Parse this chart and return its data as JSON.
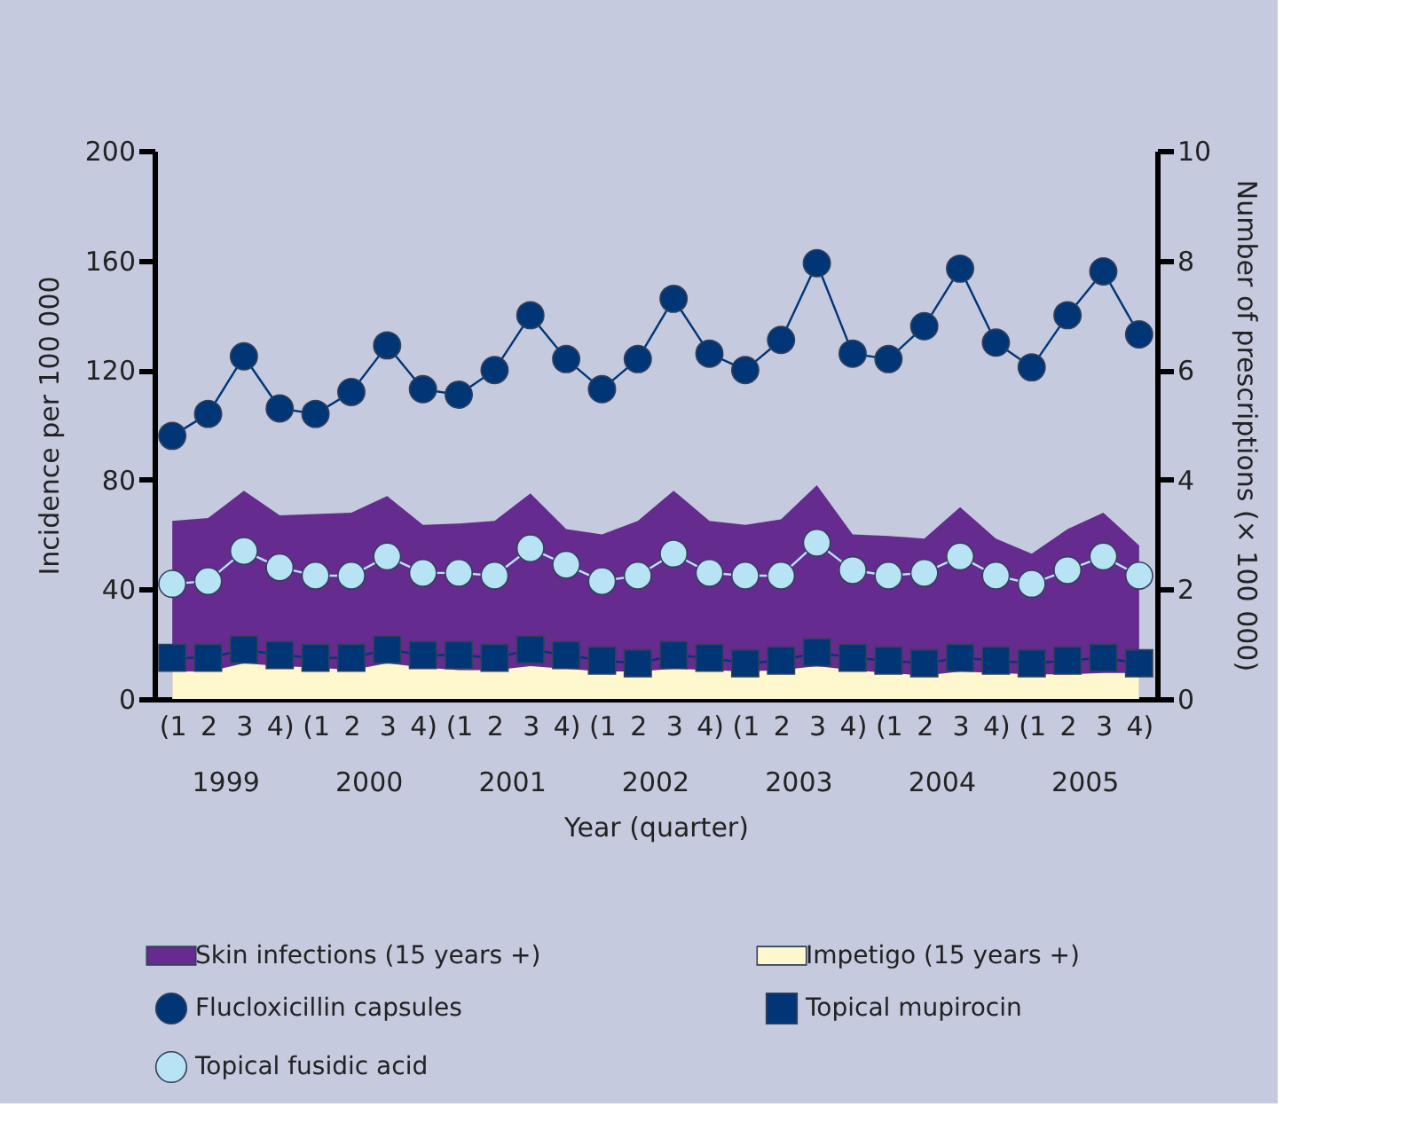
{
  "chart_data": {
    "type": "line",
    "xlabel": "Year (quarter)",
    "ylabel": "Incidence per 100 000",
    "y2label": "Number of prescriptions (× 100 000)",
    "categories": [
      "(1",
      "2",
      "3",
      "4)",
      "(1",
      "2",
      "3",
      "4)",
      "(1",
      "2",
      "3",
      "4)",
      "(1",
      "2",
      "3",
      "4)",
      "(1",
      "2",
      "3",
      "4)",
      "(1",
      "2",
      "3",
      "4)",
      "(1",
      "2",
      "3",
      "4)"
    ],
    "annotations": [
      "1999",
      "2000",
      "2001",
      "2002",
      "2003",
      "2004",
      "2005"
    ],
    "ylim": [
      0,
      200
    ],
    "yticks": [
      0,
      40,
      80,
      120,
      160,
      200
    ],
    "y2lim": [
      0,
      10
    ],
    "y2ticks": [
      0,
      2,
      4,
      6,
      8,
      10
    ],
    "grid": false,
    "legend": "bottom",
    "line_style": "solid",
    "series": [
      {
        "name": "Skin infections (15 years +)",
        "type": "area",
        "axis": "y",
        "color": "#652b8f",
        "values": [
          65,
          66,
          76,
          67,
          67.5,
          68,
          74,
          63.5,
          64,
          65,
          75,
          62,
          60,
          65,
          76,
          65,
          63.5,
          65.5,
          78,
          60,
          59.5,
          58.5,
          70,
          58.5,
          53,
          62,
          68,
          56
        ]
      },
      {
        "name": "Impetigo (15 years +)",
        "type": "area",
        "axis": "y",
        "color": "#fff8cf",
        "values": [
          10,
          10,
          13,
          12,
          11.5,
          10.5,
          13,
          11.5,
          10.5,
          10.5,
          12,
          11,
          10,
          10,
          11,
          10.5,
          10,
          10.5,
          12,
          10.5,
          9.5,
          8.5,
          10,
          9.5,
          9,
          9,
          9.5,
          9.5
        ]
      },
      {
        "name": "Flucloxicillin capsules",
        "axis": "y2",
        "marker": "circle",
        "color": "#003676",
        "values": [
          4.8,
          5.2,
          6.25,
          5.3,
          5.2,
          5.6,
          6.45,
          5.65,
          5.55,
          6.0,
          7.0,
          6.2,
          5.65,
          6.2,
          7.3,
          6.3,
          6.0,
          6.55,
          7.95,
          6.3,
          6.2,
          6.8,
          7.85,
          6.5,
          6.05,
          7.0,
          7.8,
          6.65
        ]
      },
      {
        "name": "Topical mupirocin",
        "axis": "y2",
        "marker": "square",
        "color": "#003676",
        "values": [
          0.75,
          0.75,
          0.9,
          0.8,
          0.75,
          0.75,
          0.9,
          0.8,
          0.8,
          0.75,
          0.9,
          0.8,
          0.7,
          0.65,
          0.8,
          0.75,
          0.65,
          0.7,
          0.85,
          0.75,
          0.7,
          0.65,
          0.75,
          0.7,
          0.65,
          0.7,
          0.75,
          0.65
        ]
      },
      {
        "name": "Topical fusidic acid",
        "axis": "y2",
        "marker": "circle",
        "color": "#b8e3f5",
        "values": [
          2.1,
          2.15,
          2.7,
          2.4,
          2.25,
          2.25,
          2.6,
          2.3,
          2.3,
          2.25,
          2.75,
          2.45,
          2.15,
          2.25,
          2.65,
          2.3,
          2.25,
          2.25,
          2.85,
          2.35,
          2.25,
          2.3,
          2.6,
          2.25,
          2.1,
          2.35,
          2.6,
          2.25
        ]
      }
    ]
  }
}
